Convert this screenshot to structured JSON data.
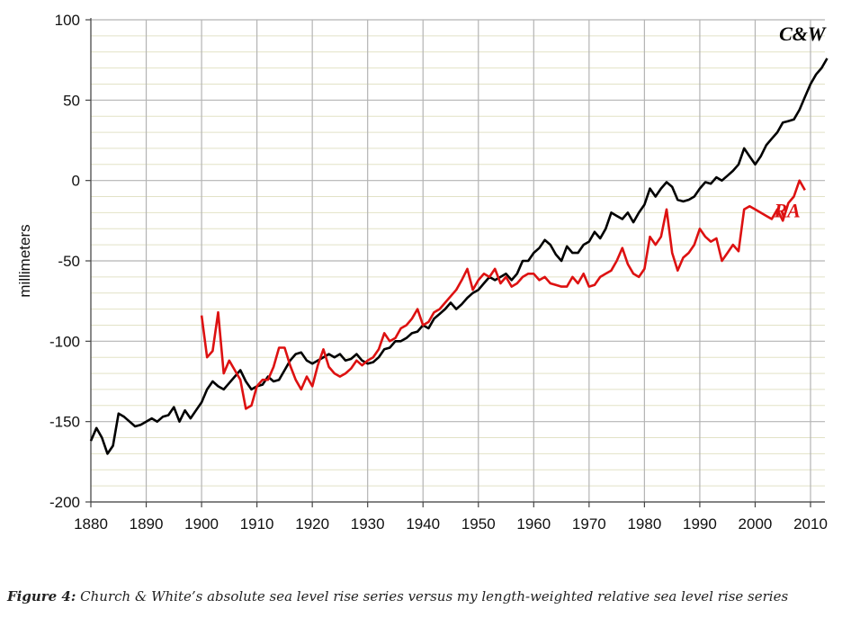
{
  "caption": {
    "label": "Figure 4:",
    "text": " Church & White’s absolute sea level rise series versus my length-weighted relative sea level rise series"
  },
  "chart_data": {
    "type": "line",
    "title": "",
    "xlabel": "",
    "ylabel": "millimeters",
    "xlim": [
      1880,
      2013
    ],
    "ylim": [
      -200,
      100
    ],
    "x_ticks": [
      1880,
      1890,
      1900,
      1910,
      1920,
      1930,
      1940,
      1950,
      1960,
      1970,
      1980,
      1990,
      2000,
      2010
    ],
    "y_ticks": [
      100,
      50,
      0,
      -50,
      -100,
      -150,
      -200
    ],
    "grid": true,
    "legend": "none",
    "series": [
      {
        "name": "C&W",
        "label_position": "end",
        "color": "#000000",
        "x": [
          1880,
          1881,
          1882,
          1883,
          1884,
          1885,
          1886,
          1887,
          1888,
          1889,
          1890,
          1891,
          1892,
          1893,
          1894,
          1895,
          1896,
          1897,
          1898,
          1899,
          1900,
          1901,
          1902,
          1903,
          1904,
          1905,
          1906,
          1907,
          1908,
          1909,
          1910,
          1911,
          1912,
          1913,
          1914,
          1915,
          1916,
          1917,
          1918,
          1919,
          1920,
          1921,
          1922,
          1923,
          1924,
          1925,
          1926,
          1927,
          1928,
          1929,
          1930,
          1931,
          1932,
          1933,
          1934,
          1935,
          1936,
          1937,
          1938,
          1939,
          1940,
          1941,
          1942,
          1943,
          1944,
          1945,
          1946,
          1947,
          1948,
          1949,
          1950,
          1951,
          1952,
          1953,
          1954,
          1955,
          1956,
          1957,
          1958,
          1959,
          1960,
          1961,
          1962,
          1963,
          1964,
          1965,
          1966,
          1967,
          1968,
          1969,
          1970,
          1971,
          1972,
          1973,
          1974,
          1975,
          1976,
          1977,
          1978,
          1979,
          1980,
          1981,
          1982,
          1983,
          1984,
          1985,
          1986,
          1987,
          1988,
          1989,
          1990,
          1991,
          1992,
          1993,
          1994,
          1995,
          1996,
          1997,
          1998,
          1999,
          2000,
          2001,
          2002,
          2003,
          2004,
          2005,
          2006,
          2007,
          2008,
          2009,
          2010,
          2011,
          2012,
          2013
        ],
        "values": [
          -162,
          -154,
          -160,
          -170,
          -165,
          -145,
          -147,
          -150,
          -153,
          -152,
          -150,
          -148,
          -150,
          -147,
          -146,
          -141,
          -150,
          -143,
          -148,
          -143,
          -138,
          -130,
          -125,
          -128,
          -130,
          -126,
          -122,
          -118,
          -125,
          -130,
          -128,
          -127,
          -122,
          -125,
          -124,
          -118,
          -112,
          -108,
          -107,
          -112,
          -114,
          -112,
          -110,
          -108,
          -110,
          -108,
          -112,
          -111,
          -108,
          -112,
          -114,
          -113,
          -110,
          -105,
          -104,
          -100,
          -100,
          -98,
          -95,
          -94,
          -90,
          -92,
          -86,
          -83,
          -80,
          -76,
          -80,
          -77,
          -73,
          -70,
          -68,
          -64,
          -60,
          -62,
          -60,
          -58,
          -62,
          -58,
          -50,
          -50,
          -45,
          -42,
          -37,
          -40,
          -46,
          -50,
          -41,
          -45,
          -45,
          -40,
          -38,
          -32,
          -36,
          -30,
          -20,
          -22,
          -24,
          -20,
          -26,
          -20,
          -15,
          -5,
          -10,
          -5,
          -1,
          -4,
          -12,
          -13,
          -12,
          -10,
          -5,
          -1,
          -2,
          2,
          0,
          3,
          6,
          10,
          20,
          15,
          10,
          15,
          22,
          26,
          30,
          36,
          37,
          38,
          44,
          52,
          60,
          66,
          70,
          76
        ]
      },
      {
        "name": "RA",
        "label_position": "end",
        "color": "#dd1111",
        "x": [
          1900,
          1901,
          1902,
          1903,
          1904,
          1905,
          1906,
          1907,
          1908,
          1909,
          1910,
          1911,
          1912,
          1913,
          1914,
          1915,
          1916,
          1917,
          1918,
          1919,
          1920,
          1921,
          1922,
          1923,
          1924,
          1925,
          1926,
          1927,
          1928,
          1929,
          1930,
          1931,
          1932,
          1933,
          1934,
          1935,
          1936,
          1937,
          1938,
          1939,
          1940,
          1941,
          1942,
          1943,
          1944,
          1945,
          1946,
          1947,
          1948,
          1949,
          1950,
          1951,
          1952,
          1953,
          1954,
          1955,
          1956,
          1957,
          1958,
          1959,
          1960,
          1961,
          1962,
          1963,
          1964,
          1965,
          1966,
          1967,
          1968,
          1969,
          1970,
          1971,
          1972,
          1973,
          1974,
          1975,
          1976,
          1977,
          1978,
          1979,
          1980,
          1981,
          1982,
          1983,
          1984,
          1985,
          1986,
          1987,
          1988,
          1989,
          1990,
          1991,
          1992,
          1993,
          1994,
          1995,
          1996,
          1997,
          1998,
          1999,
          2000,
          2001,
          2002,
          2003,
          2004,
          2005,
          2006,
          2007,
          2008,
          2009
        ],
        "values": [
          -84,
          -110,
          -106,
          -82,
          -120,
          -112,
          -118,
          -124,
          -142,
          -140,
          -128,
          -124,
          -124,
          -116,
          -104,
          -104,
          -115,
          -124,
          -130,
          -122,
          -128,
          -115,
          -105,
          -116,
          -120,
          -122,
          -120,
          -117,
          -112,
          -115,
          -112,
          -110,
          -105,
          -95,
          -100,
          -98,
          -92,
          -90,
          -86,
          -80,
          -90,
          -88,
          -82,
          -80,
          -76,
          -72,
          -68,
          -62,
          -55,
          -68,
          -62,
          -58,
          -60,
          -55,
          -64,
          -60,
          -66,
          -64,
          -60,
          -58,
          -58,
          -62,
          -60,
          -64,
          -65,
          -66,
          -66,
          -60,
          -64,
          -58,
          -66,
          -65,
          -60,
          -58,
          -56,
          -50,
          -42,
          -52,
          -58,
          -60,
          -55,
          -35,
          -40,
          -35,
          -18,
          -45,
          -56,
          -48,
          -45,
          -40,
          -30,
          -35,
          -38,
          -36,
          -50,
          -45,
          -40,
          -44,
          -18,
          -16,
          -18,
          -20,
          -22,
          -24,
          -18,
          -25,
          -14,
          -10,
          0,
          -6
        ]
      }
    ]
  }
}
